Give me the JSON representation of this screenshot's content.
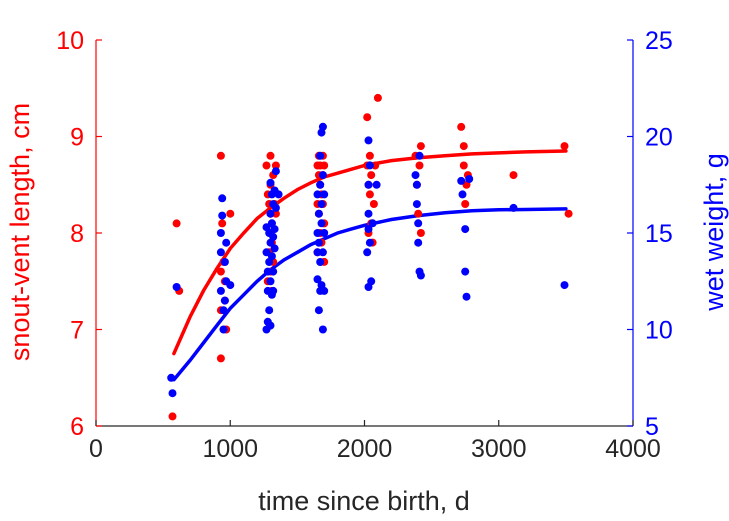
{
  "chart_data": {
    "type": "scatter",
    "xlabel": "time since birth, d",
    "ylabel_left": "snout-vent length, cm",
    "ylabel_right": "wet weight, g",
    "xlim": [
      0,
      4000
    ],
    "ylim_left": [
      6,
      10
    ],
    "ylim_right": [
      5,
      25
    ],
    "xticks": [
      "0",
      "1000",
      "2000",
      "3000",
      "4000"
    ],
    "yticks_left": [
      "6",
      "7",
      "8",
      "9",
      "10"
    ],
    "yticks_right": [
      "5",
      "10",
      "15",
      "20",
      "25"
    ],
    "colors": {
      "left": "#ff0000",
      "right": "#0000ff",
      "axis_x": "#262626"
    },
    "grid": false,
    "series": [
      {
        "axis": "left",
        "color": "#ff0000",
        "points": [
          [
            570,
            6.1
          ],
          [
            600,
            8.1
          ],
          [
            620,
            7.4
          ],
          [
            930,
            8.8
          ],
          [
            930,
            7.6
          ],
          [
            930,
            7.2
          ],
          [
            930,
            6.7
          ],
          [
            940,
            8.1
          ],
          [
            950,
            7.7
          ],
          [
            960,
            7.5
          ],
          [
            960,
            7.3
          ],
          [
            970,
            7.0
          ],
          [
            1000,
            8.2
          ],
          [
            1270,
            8.7
          ],
          [
            1280,
            8.4
          ],
          [
            1280,
            7.5
          ],
          [
            1290,
            8.3
          ],
          [
            1290,
            7.8
          ],
          [
            1300,
            8.8
          ],
          [
            1300,
            8.5
          ],
          [
            1300,
            8.2
          ],
          [
            1300,
            8.0
          ],
          [
            1300,
            7.6
          ],
          [
            1310,
            8.1
          ],
          [
            1310,
            7.9
          ],
          [
            1310,
            7.4
          ],
          [
            1320,
            8.6
          ],
          [
            1320,
            7.7
          ],
          [
            1330,
            8.3
          ],
          [
            1340,
            8.7
          ],
          [
            1340,
            8.2
          ],
          [
            1650,
            8.7
          ],
          [
            1650,
            8.3
          ],
          [
            1650,
            7.8
          ],
          [
            1660,
            8.8
          ],
          [
            1660,
            8.6
          ],
          [
            1660,
            8.2
          ],
          [
            1670,
            8.7
          ],
          [
            1670,
            8.5
          ],
          [
            1670,
            8.0
          ],
          [
            1680,
            8.4
          ],
          [
            1680,
            7.9
          ],
          [
            1690,
            8.8
          ],
          [
            1690,
            8.6
          ],
          [
            1690,
            8.3
          ],
          [
            1700,
            8.7
          ],
          [
            1700,
            8.1
          ],
          [
            1700,
            7.7
          ],
          [
            2020,
            9.2
          ],
          [
            2020,
            8.7
          ],
          [
            2030,
            8.5
          ],
          [
            2030,
            8.0
          ],
          [
            2040,
            8.8
          ],
          [
            2040,
            8.4
          ],
          [
            2050,
            8.6
          ],
          [
            2050,
            8.1
          ],
          [
            2060,
            7.9
          ],
          [
            2070,
            8.3
          ],
          [
            2080,
            8.7
          ],
          [
            2100,
            9.4
          ],
          [
            2380,
            8.8
          ],
          [
            2390,
            8.5
          ],
          [
            2400,
            8.2
          ],
          [
            2410,
            8.7
          ],
          [
            2420,
            8.9
          ],
          [
            2420,
            8.0
          ],
          [
            2720,
            9.1
          ],
          [
            2740,
            8.9
          ],
          [
            2740,
            8.7
          ],
          [
            2750,
            8.3
          ],
          [
            2760,
            8.5
          ],
          [
            2770,
            8.6
          ],
          [
            3110,
            8.6
          ],
          [
            3490,
            8.9
          ],
          [
            3520,
            8.2
          ]
        ]
      },
      {
        "axis": "right",
        "color": "#0000ff",
        "points": [
          [
            560,
            7.5
          ],
          [
            570,
            6.7
          ],
          [
            600,
            12.2
          ],
          [
            930,
            15.0
          ],
          [
            930,
            14.0
          ],
          [
            930,
            12.0
          ],
          [
            940,
            16.8
          ],
          [
            940,
            15.9
          ],
          [
            950,
            11.0
          ],
          [
            950,
            10.0
          ],
          [
            960,
            13.5
          ],
          [
            960,
            11.5
          ],
          [
            970,
            14.5
          ],
          [
            970,
            12.5
          ],
          [
            1000,
            12.3
          ],
          [
            1270,
            15.3
          ],
          [
            1270,
            14.0
          ],
          [
            1270,
            10.0
          ],
          [
            1280,
            13.0
          ],
          [
            1280,
            12.0
          ],
          [
            1280,
            10.4
          ],
          [
            1290,
            15.0
          ],
          [
            1290,
            13.5
          ],
          [
            1290,
            11.0
          ],
          [
            1300,
            17.6
          ],
          [
            1300,
            16.0
          ],
          [
            1300,
            14.5
          ],
          [
            1300,
            12.5
          ],
          [
            1300,
            10.2
          ],
          [
            1310,
            17.0
          ],
          [
            1310,
            15.5
          ],
          [
            1310,
            13.8
          ],
          [
            1310,
            11.8
          ],
          [
            1320,
            16.5
          ],
          [
            1320,
            14.8
          ],
          [
            1320,
            13.0
          ],
          [
            1320,
            12.0
          ],
          [
            1330,
            17.2
          ],
          [
            1330,
            15.2
          ],
          [
            1330,
            14.2
          ],
          [
            1340,
            18.2
          ],
          [
            1340,
            16.3
          ],
          [
            1360,
            17.0
          ],
          [
            1650,
            17.0
          ],
          [
            1650,
            15.0
          ],
          [
            1650,
            14.0
          ],
          [
            1650,
            12.6
          ],
          [
            1660,
            16.0
          ],
          [
            1660,
            14.5
          ],
          [
            1660,
            11.0
          ],
          [
            1670,
            19.0
          ],
          [
            1670,
            17.5
          ],
          [
            1670,
            13.5
          ],
          [
            1670,
            12.0
          ],
          [
            1680,
            20.2
          ],
          [
            1680,
            16.5
          ],
          [
            1680,
            15.5
          ],
          [
            1680,
            12.3
          ],
          [
            1690,
            20.5
          ],
          [
            1690,
            18.0
          ],
          [
            1690,
            14.0
          ],
          [
            1690,
            10.0
          ],
          [
            1700,
            17.0
          ],
          [
            1700,
            15.0
          ],
          [
            1700,
            12.0
          ],
          [
            2020,
            14.0
          ],
          [
            2030,
            19.8
          ],
          [
            2030,
            17.5
          ],
          [
            2030,
            16.0
          ],
          [
            2030,
            15.2
          ],
          [
            2030,
            12.2
          ],
          [
            2040,
            18.5
          ],
          [
            2040,
            14.5
          ],
          [
            2050,
            12.5
          ],
          [
            2060,
            15.5
          ],
          [
            2090,
            17.5
          ],
          [
            2380,
            18.0
          ],
          [
            2390,
            17.5
          ],
          [
            2390,
            16.5
          ],
          [
            2400,
            15.5
          ],
          [
            2400,
            14.5
          ],
          [
            2410,
            19.0
          ],
          [
            2410,
            13.0
          ],
          [
            2420,
            12.8
          ],
          [
            2720,
            17.7
          ],
          [
            2730,
            17.0
          ],
          [
            2750,
            15.2
          ],
          [
            2750,
            13.0
          ],
          [
            2760,
            11.7
          ],
          [
            2780,
            17.8
          ],
          [
            3110,
            16.3
          ],
          [
            3490,
            12.3
          ]
        ]
      }
    ],
    "fits": [
      {
        "axis": "left",
        "color": "#ff0000",
        "x": [
          580,
          700,
          800,
          900,
          1000,
          1100,
          1200,
          1300,
          1400,
          1500,
          1600,
          1700,
          1800,
          1900,
          2000,
          2200,
          2400,
          2600,
          2800,
          3000,
          3200,
          3500
        ],
        "y": [
          6.75,
          7.13,
          7.4,
          7.63,
          7.84,
          8.0,
          8.15,
          8.26,
          8.36,
          8.45,
          8.52,
          8.58,
          8.62,
          8.66,
          8.7,
          8.75,
          8.78,
          8.8,
          8.82,
          8.83,
          8.84,
          8.85
        ]
      },
      {
        "axis": "right",
        "color": "#0000ff",
        "x": [
          580,
          700,
          800,
          900,
          1000,
          1100,
          1200,
          1300,
          1400,
          1500,
          1600,
          1700,
          1800,
          1900,
          2000,
          2200,
          2400,
          2600,
          2800,
          3000,
          3200,
          3500
        ],
        "y": [
          7.4,
          8.4,
          9.3,
          10.2,
          11.1,
          11.8,
          12.5,
          13.1,
          13.6,
          14.0,
          14.4,
          14.7,
          15.0,
          15.2,
          15.4,
          15.7,
          15.9,
          16.05,
          16.15,
          16.2,
          16.22,
          16.25
        ]
      }
    ]
  }
}
